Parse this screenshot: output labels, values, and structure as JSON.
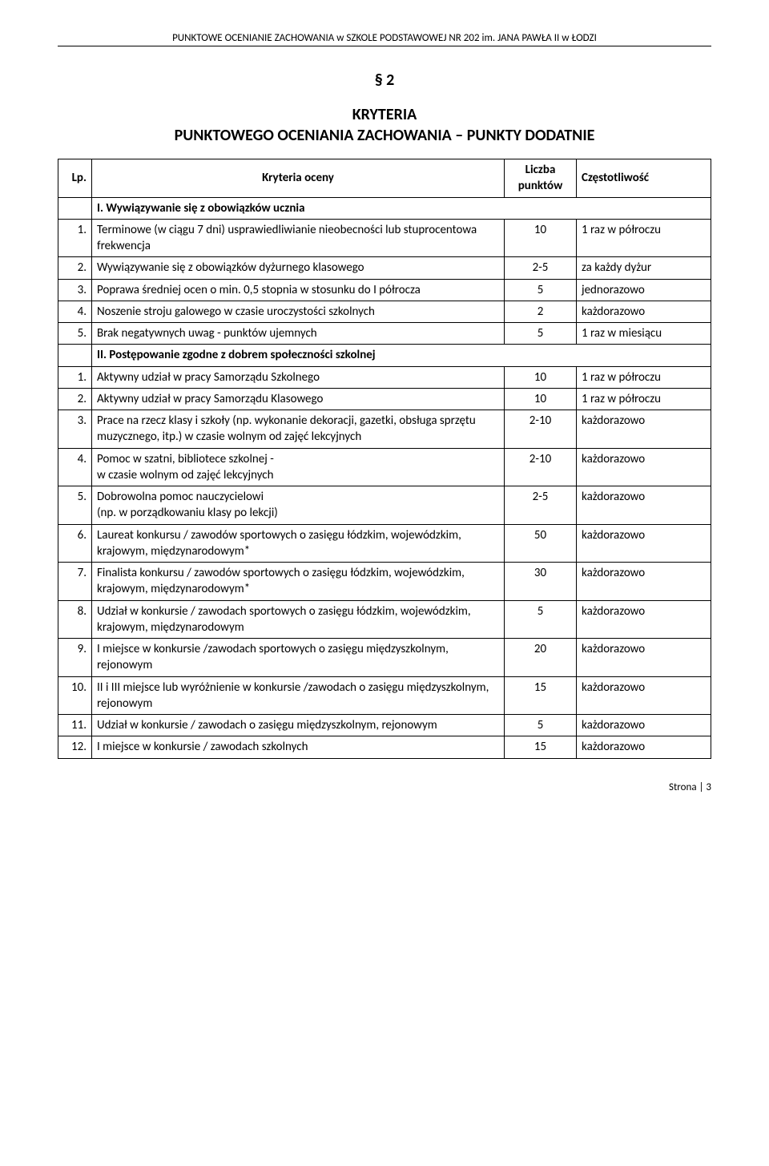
{
  "header": "PUNKTOWE OCENIANIE ZACHOWANIA w SZKOLE PODSTAWOWEJ NR 202 im. JANA PAWŁA II w ŁODZI",
  "section_number": "§ 2",
  "title_line1": "KRYTERIA",
  "title_line2": "PUNKTOWEGO OCENIANIA ZACHOWANIA – PUNKTY DODATNIE",
  "headers": {
    "lp": "Lp.",
    "kr": "Kryteria oceny",
    "pt_l1": "Liczba",
    "pt_l2": "punktów",
    "cz": "Częstotliwość"
  },
  "section1": "I.  Wywiązywanie się z obowiązków ucznia",
  "s1": [
    {
      "lp": "1.",
      "kr": "Terminowe (w ciągu 7 dni) usprawiedliwianie nieobecności lub stuprocentowa frekwencja",
      "pt": "10",
      "cz": "1 raz w półroczu"
    },
    {
      "lp": "2.",
      "kr": "Wywiązywanie się z obowiązków dyżurnego klasowego",
      "pt": "2-5",
      "cz": "za każdy dyżur"
    },
    {
      "lp": "3.",
      "kr": "Poprawa średniej ocen o min. 0,5 stopnia w stosunku do I półrocza",
      "pt": "5",
      "cz": "jednorazowo"
    },
    {
      "lp": "4.",
      "kr": "Noszenie stroju galowego w czasie uroczystości szkolnych",
      "pt": "2",
      "cz": "każdorazowo"
    },
    {
      "lp": "5.",
      "kr": "Brak negatywnych uwag  - punktów ujemnych",
      "pt": "5",
      "cz": "1 raz w miesiącu"
    }
  ],
  "section2": "II.  Postępowanie zgodne z dobrem społeczności szkolnej",
  "s2": [
    {
      "lp": "1.",
      "kr": "Aktywny udział w pracy Samorządu Szkolnego",
      "pt": "10",
      "cz": "1 raz w półroczu"
    },
    {
      "lp": "2.",
      "kr": "Aktywny udział w pracy Samorządu Klasowego",
      "pt": "10",
      "cz": "1 raz w półroczu"
    },
    {
      "lp": "3.",
      "kr": "Prace na rzecz klasy i szkoły (np. wykonanie dekoracji, gazetki, obsługa sprzętu muzycznego, itp.) w czasie wolnym od zajęć lekcyjnych",
      "pt": "2-10",
      "cz": "każdorazowo"
    },
    {
      "lp": "4.",
      "kr": "Pomoc w szatni, bibliotece szkolnej - \nw czasie wolnym od zajęć lekcyjnych",
      "pt": "2-10",
      "cz": "każdorazowo"
    },
    {
      "lp": "5.",
      "kr": "Dobrowolna pomoc nauczycielowi\n(np. w porządkowaniu klasy po lekcji)",
      "pt": "2-5",
      "cz": "każdorazowo"
    },
    {
      "lp": "6.",
      "kr": "Laureat konkursu / zawodów sportowych o zasięgu łódzkim, wojewódzkim, krajowym, międzynarodowym*",
      "pt": "50",
      "cz": "każdorazowo"
    },
    {
      "lp": "7.",
      "kr": "Finalista konkursu / zawodów sportowych o zasięgu łódzkim, wojewódzkim, krajowym, międzynarodowym*",
      "pt": "30",
      "cz": "każdorazowo"
    },
    {
      "lp": "8.",
      "kr": "Udział w konkursie / zawodach sportowych o zasięgu łódzkim, wojewódzkim, krajowym, międzynarodowym",
      "pt": "5",
      "cz": "każdorazowo"
    },
    {
      "lp": "9.",
      "kr": "I miejsce w konkursie /zawodach sportowych o zasięgu międzyszkolnym, rejonowym",
      "pt": "20",
      "cz": "każdorazowo"
    },
    {
      "lp": "10.",
      "kr": "II i III miejsce lub wyróżnienie w konkursie /zawodach o zasięgu międzyszkolnym, rejonowym",
      "pt": "15",
      "cz": "każdorazowo"
    },
    {
      "lp": "11.",
      "kr": "Udział w konkursie / zawodach o zasięgu międzyszkolnym, rejonowym",
      "pt": "5",
      "cz": "każdorazowo"
    },
    {
      "lp": "12.",
      "kr": "I miejsce w konkursie / zawodach szkolnych",
      "pt": "15",
      "cz": "każdorazowo"
    }
  ],
  "footer": "Strona | 3"
}
